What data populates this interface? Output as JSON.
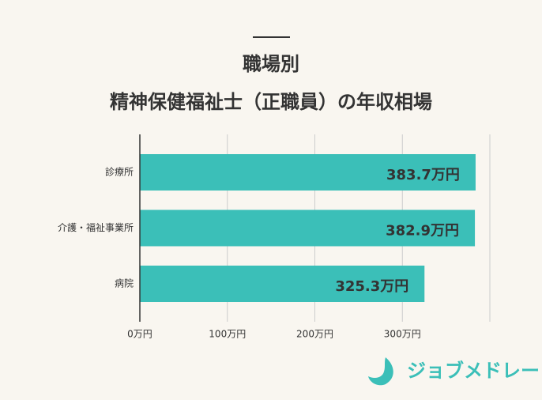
{
  "chart_data": {
    "type": "hbar",
    "title": "職場別",
    "subtitle": "精神保健福祉士（正職員）の年収相場",
    "categories": [
      "診療所",
      "介護・福祉事業所",
      "病院"
    ],
    "values": [
      383.7,
      382.9,
      325.3
    ],
    "value_labels": [
      "383.7万円",
      "382.9万円",
      "325.3万円"
    ],
    "color": "#3bbfb8",
    "xlim": [
      0,
      400
    ],
    "xticks": [
      {
        "value": 0,
        "label": "0万円"
      },
      {
        "value": 100,
        "label": "100万円"
      },
      {
        "value": 200,
        "label": "200万円"
      },
      {
        "value": 300,
        "label": "300万円"
      }
    ],
    "grid": true,
    "brand": "ジョブメドレー"
  }
}
